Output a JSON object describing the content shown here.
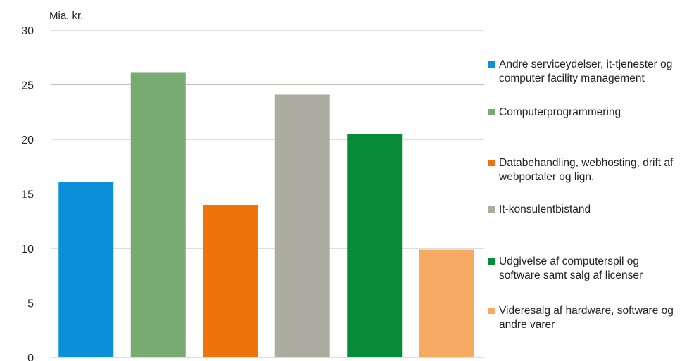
{
  "chart_data": {
    "type": "bar",
    "unit_label": "Mia. kr.",
    "categories": [
      "Andre serviceydelser, it-tjenester og computer facility management",
      "Computerprogrammering",
      "Databehandling, webhosting, drift af webportaler og lign.",
      "It-konsulentbistand",
      "Udgivelse af computerspil og software samt salg af licenser",
      "Videresalg af hardware, software og andre varer"
    ],
    "values": [
      16.1,
      26.1,
      14.0,
      24.1,
      20.5,
      9.9
    ],
    "colors": [
      "#0a8fd8",
      "#78ab72",
      "#ee7309",
      "#adaca0",
      "#068c38",
      "#f6ab65"
    ],
    "ylim": [
      0,
      30
    ],
    "yticks": [
      "0",
      "5",
      "10",
      "15",
      "20",
      "25",
      "30"
    ],
    "grid": true,
    "legend_position": "right"
  }
}
